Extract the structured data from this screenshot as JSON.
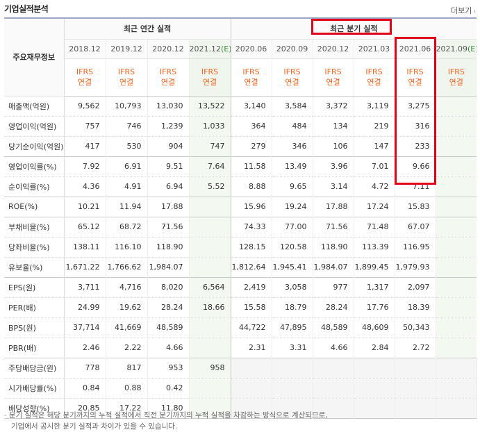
{
  "title": "기업실적분석",
  "more": {
    "label": "더보기",
    "arrow": "›"
  },
  "header": {
    "row_label": "주요재무정보",
    "annual_group": "최근 연간 실적",
    "quarter_group": "최근 분기 실적",
    "annual_periods": [
      "2018.12",
      "2019.12",
      "2020.12",
      "2021.12"
    ],
    "annual_est_mark": "(E)",
    "quarter_periods": [
      "2020.06",
      "2020.09",
      "2020.12",
      "2021.03",
      "2021.06",
      "2021.09"
    ],
    "quarter_est_mark": "(E)",
    "ifrs_top": "IFRS",
    "ifrs_bottom": "연결"
  },
  "rows": [
    {
      "label": "매출액(억원)",
      "annual": [
        "9,562",
        "10,793",
        "13,030",
        "13,522"
      ],
      "quarter": [
        "3,140",
        "3,584",
        "3,372",
        "3,119",
        "3,275",
        ""
      ]
    },
    {
      "label": "영업이익(억원)",
      "annual": [
        "757",
        "746",
        "1,239",
        "1,033"
      ],
      "quarter": [
        "364",
        "484",
        "134",
        "219",
        "316",
        ""
      ]
    },
    {
      "label": "당기순이익(억원)",
      "annual": [
        "417",
        "530",
        "904",
        "747"
      ],
      "quarter": [
        "279",
        "346",
        "106",
        "147",
        "233",
        ""
      ]
    },
    {
      "label": "영업이익률(%)",
      "annual": [
        "7.92",
        "6.91",
        "9.51",
        "7.64"
      ],
      "quarter": [
        "11.58",
        "13.49",
        "3.96",
        "7.01",
        "9.66",
        ""
      ]
    },
    {
      "label": "순이익률(%)",
      "annual": [
        "4.36",
        "4.91",
        "6.94",
        "5.52"
      ],
      "quarter": [
        "8.88",
        "9.65",
        "3.14",
        "4.72",
        "7.11",
        ""
      ]
    },
    {
      "label": "ROE(%)",
      "annual": [
        "10.21",
        "11.94",
        "17.88",
        ""
      ],
      "quarter": [
        "15.96",
        "19.24",
        "17.88",
        "17.24",
        "15.83",
        ""
      ]
    },
    {
      "label": "부채비율(%)",
      "annual": [
        "65.12",
        "68.72",
        "71.56",
        ""
      ],
      "quarter": [
        "74.33",
        "77.00",
        "71.56",
        "71.48",
        "67.07",
        ""
      ]
    },
    {
      "label": "당좌비율(%)",
      "annual": [
        "138.11",
        "116.10",
        "118.90",
        ""
      ],
      "quarter": [
        "128.15",
        "120.58",
        "118.90",
        "113.39",
        "116.95",
        ""
      ]
    },
    {
      "label": "유보율(%)",
      "annual": [
        "1,671.22",
        "1,766.62",
        "1,984.07",
        ""
      ],
      "quarter": [
        "1,812.64",
        "1,945.41",
        "1,984.07",
        "1,899.45",
        "1,979.93",
        ""
      ]
    },
    {
      "label": "EPS(원)",
      "annual": [
        "3,711",
        "4,716",
        "8,020",
        "6,564"
      ],
      "quarter": [
        "2,419",
        "3,058",
        "977",
        "1,317",
        "2,097",
        ""
      ]
    },
    {
      "label": "PER(배)",
      "annual": [
        "24.99",
        "19.62",
        "28.24",
        "18.66"
      ],
      "quarter": [
        "15.58",
        "18.79",
        "28.24",
        "17.76",
        "18.39",
        ""
      ]
    },
    {
      "label": "BPS(원)",
      "annual": [
        "37,714",
        "41,669",
        "48,589",
        ""
      ],
      "quarter": [
        "44,722",
        "47,895",
        "48,589",
        "48,609",
        "50,343",
        ""
      ]
    },
    {
      "label": "PBR(배)",
      "annual": [
        "2.46",
        "2.22",
        "4.66",
        ""
      ],
      "quarter": [
        "2.31",
        "3.31",
        "4.66",
        "2.84",
        "2.72",
        ""
      ]
    },
    {
      "label": "주당배당금(원)",
      "annual": [
        "778",
        "817",
        "953",
        "958"
      ],
      "quarter": [
        "",
        "",
        "",
        "",
        "",
        ""
      ]
    },
    {
      "label": "시가배당률(%)",
      "annual": [
        "0.84",
        "0.88",
        "0.42",
        ""
      ],
      "quarter": [
        "",
        "",
        "",
        "",
        "",
        ""
      ]
    },
    {
      "label": "배당성향(%)",
      "annual": [
        "20.85",
        "17.22",
        "11.80",
        ""
      ],
      "quarter": [
        "",
        "",
        "",
        "",
        "",
        ""
      ]
    }
  ],
  "note": {
    "bullet": "-",
    "line1": "분기 실적은 해당 분기까지의 누적 실적에서 직전 분기까지의 누적 실적을 차감하는 방식으로 계산되므로,",
    "line2": "기업에서 공시한 분기 실적과 차이가 있을 수 있습니다."
  },
  "colors": {
    "accent_red": "#e0001a",
    "ifrs_orange": "#f26522",
    "estimate_bg": "#f0f6ed"
  }
}
